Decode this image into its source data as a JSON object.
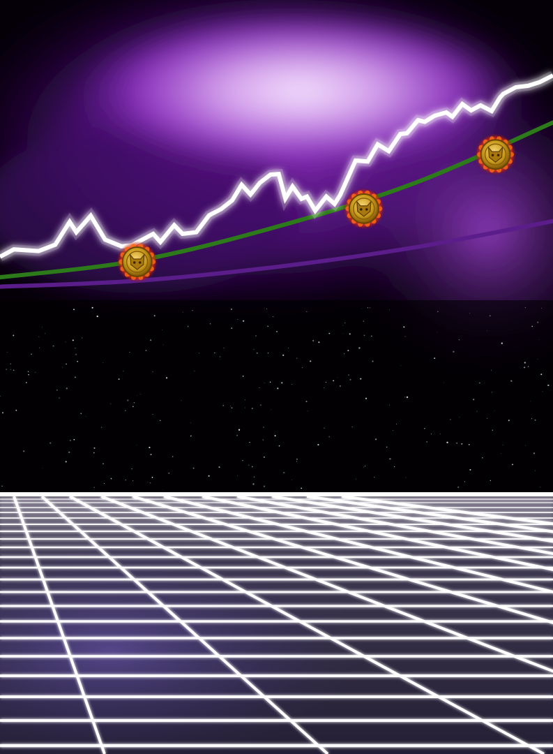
{
  "scene": {
    "type": "synthwave-illustration",
    "description_text": "",
    "colors": {
      "sky_dark": "#000000",
      "nebula_purple": "#7a1fb0",
      "nebula_glow": "#f2dcff",
      "price_line": "#ffffff",
      "trend_green": "#2d7a1a",
      "trend_purple": "#5a1d8a",
      "grid_line": "#ffffff",
      "grid_floor": "#2a2740",
      "horizon": "#ffffff",
      "coin_gold": "#c99a1c",
      "coin_fire": "#ff5a10"
    },
    "icons": [
      "coin-icon",
      "coin-icon",
      "coin-icon"
    ]
  },
  "chart_data": {
    "type": "line",
    "title": "",
    "xlabel": "",
    "ylabel": "",
    "grid": false,
    "legend": "none",
    "xlim": [
      0,
      100
    ],
    "ylim": [
      0,
      100
    ],
    "series": [
      {
        "color": "#ffffff",
        "x": [
          0,
          2.5,
          7,
          10,
          12.6,
          13.8,
          16.4,
          19,
          22,
          23.8,
          27.7,
          29,
          31.5,
          33,
          35.5,
          37.8,
          40,
          42,
          43.7,
          45.3,
          47,
          48.9,
          50.4,
          51.6,
          52.9,
          54.5,
          55.5,
          57,
          59,
          60.5,
          61.5,
          64.3,
          66.5,
          68.3,
          70.3,
          72.4,
          73.6,
          75.6,
          76.8,
          78.6,
          80.7,
          81.8,
          83.6,
          85.2,
          86.9,
          88.9,
          90.4,
          91,
          93.3,
          95.5,
          97.6,
          100
        ],
        "y": [
          46.1,
          48.3,
          47.8,
          49.7,
          56.5,
          53.4,
          58.3,
          51.2,
          49.2,
          49.5,
          52.9,
          50.5,
          55.5,
          52.9,
          53.4,
          58.4,
          60.3,
          62.9,
          67.5,
          64.6,
          68.1,
          70.5,
          70.7,
          63.4,
          67.0,
          63.3,
          64.0,
          59.8,
          64.0,
          61.8,
          64.4,
          74.7,
          74.4,
          79.5,
          77.5,
          82.6,
          82.8,
          86.7,
          86.2,
          88.0,
          89.0,
          87.7,
          91.5,
          89.6,
          91.1,
          89.4,
          93.4,
          94.5,
          96.5,
          96.9,
          98.0,
          100
        ]
      },
      {
        "color": "#2d7a1a",
        "x": [
          0,
          25,
          50,
          75,
          100
        ],
        "y": [
          40,
          45,
          55,
          68,
          86
        ]
      },
      {
        "color": "#5a1d8a",
        "x": [
          0,
          25,
          50,
          75,
          100
        ],
        "y": [
          37.2,
          39,
          43.1,
          48.9,
          56.7
        ]
      }
    ],
    "markers": [
      {
        "x": 24.8,
        "y": 44.6,
        "icon": "coin-icon"
      },
      {
        "x": 65.8,
        "y": 60.4,
        "icon": "coin-icon"
      },
      {
        "x": 89.6,
        "y": 76.5,
        "icon": "coin-icon"
      }
    ]
  }
}
